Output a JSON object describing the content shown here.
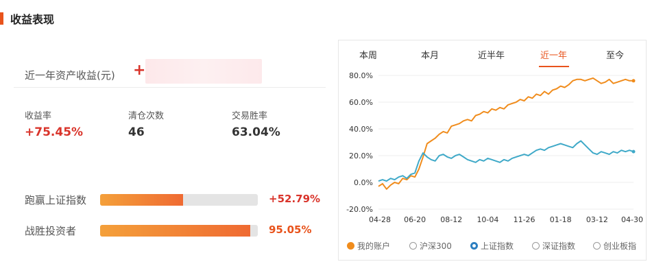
{
  "section": {
    "title": "收益表现"
  },
  "asset": {
    "label": "近一年资产收益(元)",
    "sign": "+"
  },
  "stats": [
    {
      "label": "收益率",
      "value": "+75.45%",
      "color": "#d9342b"
    },
    {
      "label": "清仓次数",
      "value": "46",
      "color": "#333333"
    },
    {
      "label": "交易胜率",
      "value": "63.04%",
      "color": "#333333"
    }
  ],
  "bars": [
    {
      "label": "跑赢上证指数",
      "value": "+52.79%",
      "fill": 0.5279,
      "value_color": "#d9342b"
    },
    {
      "label": "战胜投资者",
      "value": "95.05%",
      "fill": 0.9505,
      "value_color": "#e8531c"
    }
  ],
  "tabs": [
    {
      "label": "本周",
      "active": false
    },
    {
      "label": "本月",
      "active": false
    },
    {
      "label": "近半年",
      "active": false
    },
    {
      "label": "近一年",
      "active": true
    },
    {
      "label": "至今",
      "active": false
    }
  ],
  "legend": [
    {
      "label": "我的账户",
      "state": "filled",
      "color": "#f08c1c"
    },
    {
      "label": "沪深300",
      "state": "empty",
      "color": "#999999"
    },
    {
      "label": "上证指数",
      "state": "selected",
      "color": "#2d7fc0"
    },
    {
      "label": "深证指数",
      "state": "empty",
      "color": "#999999"
    },
    {
      "label": "创业板指",
      "state": "empty",
      "color": "#999999"
    }
  ],
  "chart_data": {
    "type": "line",
    "x_tick_labels": [
      "04-28",
      "06-20",
      "08-12",
      "10-04",
      "11-26",
      "01-18",
      "03-12",
      "04-30"
    ],
    "y_tick_labels": [
      "80.0%",
      "60.0%",
      "40.0%",
      "20.0%",
      "0.0%",
      "-20.0%"
    ],
    "ylim": [
      -20,
      80
    ],
    "grid": true,
    "x_index": [
      0,
      4,
      8,
      12,
      16,
      20,
      24,
      28,
      32,
      36,
      40,
      44,
      48,
      52,
      56,
      60,
      64,
      68,
      72,
      76,
      80,
      84,
      88,
      92,
      96,
      100,
      104,
      108,
      112,
      116,
      120,
      124,
      128,
      132,
      136,
      140,
      144,
      148,
      152,
      156,
      160,
      164,
      168,
      172,
      176,
      180,
      184,
      188,
      192,
      196,
      200,
      204,
      208,
      212,
      216,
      220,
      224,
      228,
      232,
      236,
      240,
      244,
      248,
      252
    ],
    "series": [
      {
        "name": "我的账户",
        "color": "#f08c1c",
        "values": [
          -3,
          -1,
          -5,
          -2,
          0,
          -1,
          3,
          2,
          5,
          4,
          10,
          19,
          29,
          31,
          33,
          36,
          38,
          37,
          42,
          43,
          44,
          46,
          47,
          46,
          50,
          51,
          53,
          52,
          55,
          54,
          56,
          55,
          58,
          59,
          60,
          62,
          61,
          64,
          63,
          66,
          65,
          68,
          66,
          69,
          70,
          72,
          71,
          73,
          76,
          77,
          77,
          76,
          77,
          78,
          76,
          74,
          75,
          77,
          74,
          75,
          76,
          77,
          76,
          76
        ]
      },
      {
        "name": "上证指数",
        "color": "#3fa9c8",
        "values": [
          1,
          2,
          1,
          3,
          2,
          4,
          5,
          3,
          6,
          7,
          16,
          22,
          19,
          17,
          16,
          20,
          21,
          19,
          18,
          20,
          21,
          19,
          17,
          16,
          15,
          17,
          16,
          18,
          17,
          16,
          15,
          17,
          16,
          18,
          19,
          20,
          21,
          20,
          22,
          24,
          25,
          24,
          26,
          27,
          28,
          29,
          28,
          27,
          26,
          29,
          31,
          28,
          25,
          22,
          21,
          23,
          22,
          21,
          23,
          22,
          24,
          23,
          24,
          23
        ]
      }
    ]
  }
}
